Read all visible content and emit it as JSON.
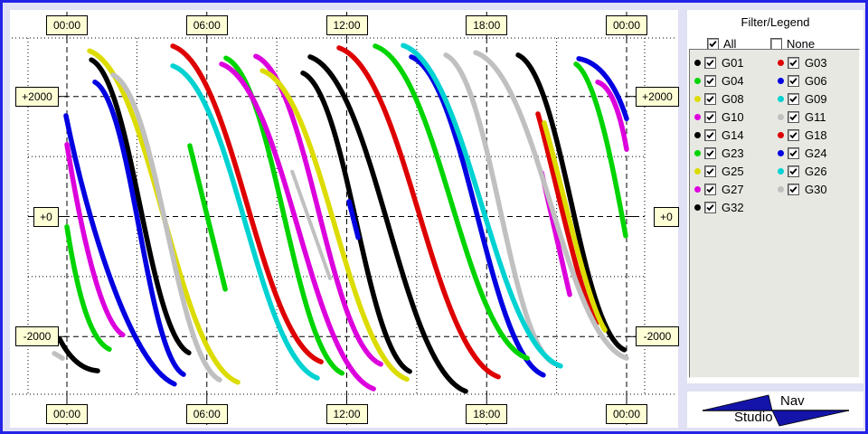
{
  "window": {
    "background": "#E1E1F5",
    "border_color": "#2323E6"
  },
  "chart": {
    "plot_background": "#FFFFFF",
    "grid_color": "#000000",
    "tick_label_background": "#FFFFD6",
    "top_ticks": [
      "00:00",
      "06:00",
      "12:00",
      "18:00",
      "00:00"
    ],
    "bottom_ticks": [
      "00:00",
      "06:00",
      "12:00",
      "18:00",
      "00:00"
    ],
    "left_labels": [
      "+2000",
      "+0",
      "-2000"
    ],
    "right_labels": [
      "+2000",
      "+0",
      "-2000"
    ]
  },
  "chart_data": {
    "type": "line",
    "x_axis": {
      "tick_labels": [
        "00:00",
        "06:00",
        "12:00",
        "18:00",
        "00:00"
      ],
      "range_hours": [
        0,
        24
      ],
      "major_grid_hours": 6,
      "minor_grid_hours": 3,
      "grid": "dashed-major dotted-minor"
    },
    "y_axis": {
      "tick_labels": [
        "+2000",
        "+0",
        "-2000"
      ],
      "range": [
        -3000,
        3000
      ],
      "major_grid": 2000,
      "minor_grid": 1000
    },
    "legend_position": "right-panel",
    "series": [
      {
        "sat": "G01",
        "color": "#000000",
        "passes": [
          {
            "t": [
              1.05,
              5.23
            ],
            "d": [
              2610,
              -2270
            ],
            "c": "s"
          },
          {
            "t": [
              19.35,
              23.9
            ],
            "d": [
              2690,
              -2220
            ],
            "c": "s"
          }
        ]
      },
      {
        "sat": "G03",
        "color": "#DE0000",
        "passes": [
          {
            "t": [
              4.54,
              10.9
            ],
            "d": [
              2840,
              -2420
            ],
            "c": "s"
          },
          {
            "t": [
              20.2,
              22.72
            ],
            "d": [
              1710,
              -1770
            ],
            "c": [
              0.3,
              0.3,
              0.68,
              0.85
            ]
          }
        ]
      },
      {
        "sat": "G04",
        "color": "#00D400",
        "passes": [
          {
            "t": [
              0,
              1.82
            ],
            "d": [
              -170,
              -2210
            ],
            "c": [
              0.25,
              0.55,
              0.55,
              0.93
            ]
          },
          {
            "t": [
              6.82,
              11.8
            ],
            "d": [
              2640,
              -2610
            ],
            "c": "s"
          },
          {
            "t": [
              21.83,
              23.96
            ],
            "d": [
              2540,
              -320
            ],
            "c": [
              0.4,
              0.08,
              0.75,
              0.6
            ]
          }
        ]
      },
      {
        "sat": "G06",
        "color": "#0000E0",
        "passes": [
          {
            "t": [
              1.2,
              5.0
            ],
            "d": [
              2240,
              -2630
            ],
            "c": "s"
          },
          {
            "t": [
              14.77,
              20.43
            ],
            "d": [
              2660,
              -2640
            ],
            "c": "s"
          }
        ]
      },
      {
        "sat": "G08",
        "color": "#DCDC00",
        "passes": [
          {
            "t": [
              0.97,
              7.33
            ],
            "d": [
              2760,
              -2760
            ],
            "c": "s"
          },
          {
            "t": [
              20.47,
              23.07
            ],
            "d": [
              1560,
              -1890
            ],
            "c": [
              0.3,
              0.3,
              0.68,
              0.85
            ]
          }
        ]
      },
      {
        "sat": "G09",
        "color": "#00D2D2",
        "passes": [
          {
            "t": [
              4.54,
              10.74
            ],
            "d": [
              2510,
              -2690
            ],
            "c": "s"
          }
        ]
      },
      {
        "sat": "G10",
        "color": "#DC00DC",
        "passes": [
          {
            "t": [
              0,
              2.4
            ],
            "d": [
              1200,
              -1970
            ],
            "c": [
              0.25,
              0.45,
              0.6,
              0.93
            ]
          },
          {
            "t": [
              8.1,
              13.46
            ],
            "d": [
              2670,
              -2460
            ],
            "c": "s"
          }
        ]
      },
      {
        "sat": "G11",
        "color": "#C0C0C0",
        "passes": [
          {
            "t": [
              1.98,
              6.55
            ],
            "d": [
              2360,
              -2720
            ],
            "c": "s"
          },
          {
            "t": [
              16.25,
              20.9
            ],
            "d": [
              2690,
              -2450
            ],
            "c": "s"
          }
        ]
      },
      {
        "sat": "G14",
        "color": "#000000",
        "passes": [
          {
            "t": [
              -0.31,
              1.32
            ],
            "d": [
              -2040,
              -2570
            ],
            "c": [
              0.3,
              0.7,
              0.65,
              0.97
            ]
          },
          {
            "t": [
              10.12,
              14.7
            ],
            "d": [
              2390,
              -2580
            ],
            "c": "s"
          }
        ]
      },
      {
        "sat": "G18",
        "color": "#DE0000",
        "passes": [
          {
            "t": [
              11.67,
              18.5
            ],
            "d": [
              2810,
              -2670
            ],
            "c": "s"
          }
        ]
      },
      {
        "sat": "G23",
        "color": "#00D400",
        "passes": [
          {
            "t": [
              5.27,
              6.79
            ],
            "d": [
              1180,
              -1210
            ],
            "c": "line"
          },
          {
            "t": [
              13.22,
              19.74
            ],
            "d": [
              2840,
              -2360
            ],
            "c": "s"
          }
        ]
      },
      {
        "sat": "G24",
        "color": "#0000E0",
        "passes": [
          {
            "t": [
              -0.04,
              4.61
            ],
            "d": [
              1680,
              -2790
            ],
            "c": [
              0.2,
              0.4,
              0.6,
              0.93
            ]
          },
          {
            "t": [
              12.1,
              12.49
            ],
            "d": [
              250,
              -350
            ],
            "c": "line"
          },
          {
            "t": [
              21.95,
              24
            ],
            "d": [
              2630,
              1630
            ],
            "c": [
              0.45,
              0.06,
              0.78,
              0.45
            ]
          }
        ]
      },
      {
        "sat": "G25",
        "color": "#DCDC00",
        "passes": [
          {
            "t": [
              8.38,
              14.58
            ],
            "d": [
              2430,
              -2710
            ],
            "c": "s"
          }
        ]
      },
      {
        "sat": "G26",
        "color": "#00D2D2",
        "passes": [
          {
            "t": [
              14.42,
              21.17
            ],
            "d": [
              2850,
              -2490
            ],
            "c": "s"
          }
        ]
      },
      {
        "sat": "G27",
        "color": "#DC00DC",
        "passes": [
          {
            "t": [
              6.63,
              13.15
            ],
            "d": [
              2540,
              -2870
            ],
            "c": "s"
          },
          {
            "t": [
              20.36,
              21.56
            ],
            "d": [
              730,
              -1300
            ],
            "c": "line"
          },
          {
            "t": [
              22.76,
              24
            ],
            "d": [
              2240,
              1120
            ],
            "c": [
              0.45,
              0.06,
              0.78,
              0.45
            ]
          }
        ]
      },
      {
        "sat": "G30",
        "color": "#C0C0C0",
        "passes": [
          {
            "t": [
              -0.54,
              -0.19
            ],
            "d": [
              -2280,
              -2360
            ],
            "c": "line"
          },
          {
            "t": [
              9.66,
              11.28
            ],
            "d": [
              750,
              -1030
            ],
            "c": "line",
            "w": 4
          },
          {
            "t": [
              17.53,
              24
            ],
            "d": [
              2730,
              -2360
            ],
            "c": "s"
          }
        ]
      },
      {
        "sat": "G32",
        "color": "#000000",
        "passes": [
          {
            "t": [
              10.43,
              17.1
            ],
            "d": [
              2660,
              -2910
            ],
            "c": "s"
          }
        ]
      }
    ]
  },
  "legend": {
    "title": "Filter/Legend",
    "all_label": "All",
    "all_checked": true,
    "none_label": "None",
    "none_checked": false,
    "columns": [
      {
        "items": [
          {
            "id": "G01",
            "color": "#000000",
            "checked": true
          },
          {
            "id": "G04",
            "color": "#00D400",
            "checked": true
          },
          {
            "id": "G08",
            "color": "#DCDC00",
            "checked": true
          },
          {
            "id": "G10",
            "color": "#DC00DC",
            "checked": true
          },
          {
            "id": "G14",
            "color": "#000000",
            "checked": true
          },
          {
            "id": "G23",
            "color": "#00D400",
            "checked": true
          },
          {
            "id": "G25",
            "color": "#DCDC00",
            "checked": true
          },
          {
            "id": "G27",
            "color": "#DC00DC",
            "checked": true
          },
          {
            "id": "G32",
            "color": "#000000",
            "checked": true
          }
        ]
      },
      {
        "items": [
          {
            "id": "G03",
            "color": "#DE0000",
            "checked": true
          },
          {
            "id": "G06",
            "color": "#0000E0",
            "checked": true
          },
          {
            "id": "G09",
            "color": "#00D2D2",
            "checked": true
          },
          {
            "id": "G11",
            "color": "#C0C0C0",
            "checked": true
          },
          {
            "id": "G18",
            "color": "#DE0000",
            "checked": true
          },
          {
            "id": "G24",
            "color": "#0000E0",
            "checked": true
          },
          {
            "id": "G26",
            "color": "#00D2D2",
            "checked": true
          },
          {
            "id": "G30",
            "color": "#C0C0C0",
            "checked": true
          }
        ]
      }
    ]
  },
  "logo": {
    "nav": "Nav",
    "studio": "Studio",
    "fill": "#1414AA"
  }
}
